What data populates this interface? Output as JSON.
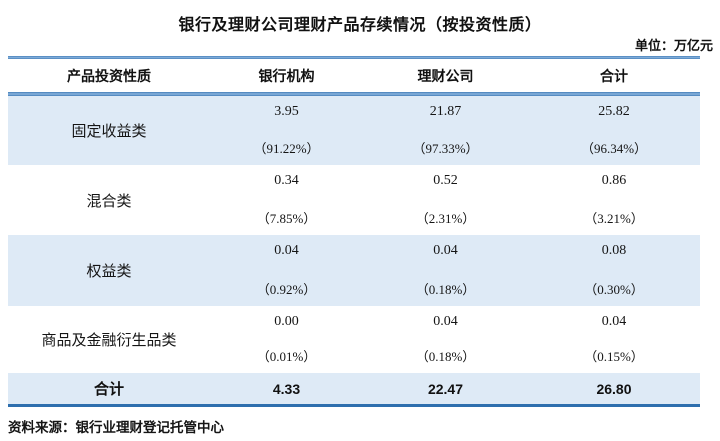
{
  "title": "银行及理财公司理财产品存续情况（按投资性质）",
  "unit_label": "单位：万亿元",
  "source_note": "资料来源：银行业理财登记托管中心",
  "colors": {
    "accent_blue": "#2e6fae",
    "row_highlight": "#deeaf6"
  },
  "table": {
    "columns": [
      "产品投资性质",
      "银行机构",
      "理财公司",
      "合计"
    ],
    "rows": [
      {
        "label": "固定收益类",
        "values": [
          "3.95",
          "21.87",
          "25.82"
        ],
        "shares": [
          "（91.22%）",
          "（97.33%）",
          "（96.34%）"
        ]
      },
      {
        "label": "混合类",
        "values": [
          "0.34",
          "0.52",
          "0.86"
        ],
        "shares": [
          "（7.85%）",
          "（2.31%）",
          "（3.21%）"
        ]
      },
      {
        "label": "权益类",
        "values": [
          "0.04",
          "0.04",
          "0.08"
        ],
        "shares": [
          "（0.92%）",
          "（0.18%）",
          "（0.30%）"
        ]
      },
      {
        "label": "商品及金融衍生品类",
        "values": [
          "0.00",
          "0.04",
          "0.04"
        ],
        "shares": [
          "（0.01%）",
          "（0.18%）",
          "（0.15%）"
        ]
      }
    ],
    "total_row": {
      "label": "合计",
      "values": [
        "4.33",
        "22.47",
        "26.80"
      ]
    }
  }
}
